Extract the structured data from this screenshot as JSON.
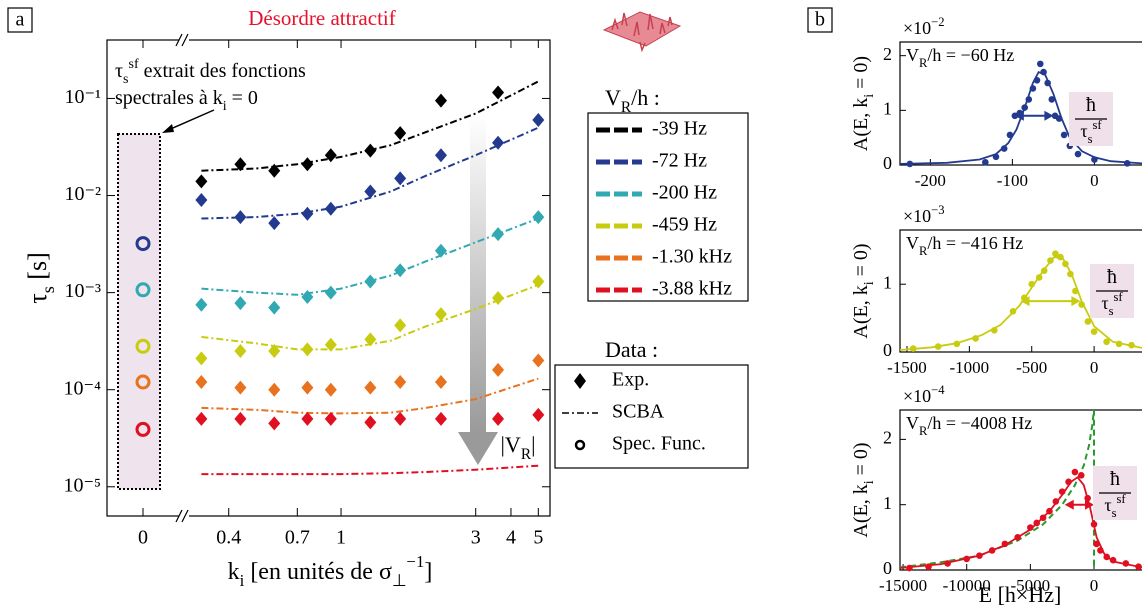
{
  "chart_data": [
    {
      "type": "scatter",
      "panel": "a",
      "title": "Désordre attractif",
      "xlog": true,
      "ylog": true,
      "xlim": [
        0.28,
        5.5
      ],
      "ylim": [
        5e-06,
        0.4
      ],
      "xticks": [
        0.4,
        0.7,
        1,
        3,
        4,
        5
      ],
      "break_xticks": [
        0
      ],
      "yticks": [
        {
          "value": 1e-05,
          "label": "10⁻⁵"
        },
        {
          "value": 0.0001,
          "label": "10⁻⁴"
        },
        {
          "value": 0.001,
          "label": "10⁻³"
        },
        {
          "value": 0.01,
          "label": "10⁻²"
        },
        {
          "value": 0.1,
          "label": "10⁻¹"
        }
      ],
      "xlabel": [
        {
          "t": "k"
        },
        {
          "t": "i",
          "pos": "sub"
        },
        {
          "t": " [en unités de σ"
        },
        {
          "t": "⊥",
          "pos": "sub"
        },
        {
          "t": "−1",
          "pos": "sup"
        },
        {
          "t": "]"
        }
      ],
      "ylabel": [
        {
          "t": "τ"
        },
        {
          "t": "s",
          "pos": "sub"
        },
        {
          "t": " [s]"
        }
      ],
      "annotation": [
        [
          {
            "t": "τ"
          },
          {
            "t": "s",
            "pos": "sub"
          },
          {
            "t": "sf",
            "pos": "sup"
          },
          {
            "t": " extrait des fonctions"
          }
        ],
        [
          {
            "t": "spectrales à k"
          },
          {
            "t": "i",
            "pos": "sub"
          },
          {
            "t": " = 0"
          }
        ]
      ],
      "legend_title": [
        {
          "t": "V"
        },
        {
          "t": "R",
          "pos": "sub"
        },
        {
          "t": "/h :"
        }
      ],
      "arrow_label": [
        {
          "t": "|V"
        },
        {
          "t": "R",
          "pos": "sub"
        },
        {
          "t": "|"
        }
      ],
      "data_legend": {
        "title": "Data :",
        "entries": [
          "Exp.",
          "SCBA",
          "Spec. Func."
        ]
      },
      "series": [
        {
          "name": "-39 Hz",
          "color": "#000000",
          "x": [
            0.32,
            0.44,
            0.58,
            0.76,
            0.92,
            1.27,
            1.62,
            2.26,
            3.6
          ],
          "values": [
            0.014,
            0.021,
            0.018,
            0.021,
            0.026,
            0.029,
            0.044,
            0.095,
            0.115
          ],
          "fit_x": [
            0.32,
            0.5,
            0.7,
            1,
            1.5,
            2,
            3,
            5
          ],
          "fit": [
            0.018,
            0.019,
            0.021,
            0.025,
            0.033,
            0.045,
            0.07,
            0.15
          ]
        },
        {
          "name": "-72 Hz",
          "color": "#233a8e",
          "x": [
            0.32,
            0.44,
            0.58,
            0.76,
            0.92,
            1.27,
            1.62,
            2.26,
            3.6,
            5.0
          ],
          "values": [
            0.009,
            0.006,
            0.0052,
            0.0065,
            0.0073,
            0.011,
            0.015,
            0.026,
            0.035,
            0.06
          ],
          "fit_x": [
            0.32,
            0.5,
            0.7,
            1,
            1.5,
            2,
            3,
            5
          ],
          "fit": [
            0.0058,
            0.006,
            0.0065,
            0.0077,
            0.011,
            0.016,
            0.026,
            0.05
          ],
          "spec": 0.0032
        },
        {
          "name": "-200 Hz",
          "color": "#31a9b3",
          "x": [
            0.32,
            0.44,
            0.58,
            0.76,
            0.92,
            1.27,
            1.62,
            2.26,
            3.6,
            5.0
          ],
          "values": [
            0.00075,
            0.00078,
            0.0007,
            0.0009,
            0.001,
            0.0013,
            0.0017,
            0.0027,
            0.004,
            0.006
          ],
          "fit_x": [
            0.32,
            0.5,
            0.7,
            1,
            1.5,
            2,
            3,
            5
          ],
          "fit": [
            0.0011,
            0.001,
            0.00095,
            0.0011,
            0.0015,
            0.0021,
            0.0033,
            0.0058
          ],
          "spec": 0.00107
        },
        {
          "name": "-459 Hz",
          "color": "#c8cc10",
          "x": [
            0.32,
            0.44,
            0.58,
            0.76,
            0.92,
            1.27,
            1.62,
            2.26,
            3.6,
            5.0
          ],
          "values": [
            0.00021,
            0.00025,
            0.00025,
            0.00026,
            0.00029,
            0.00033,
            0.00046,
            0.0006,
            0.00088,
            0.0013
          ],
          "fit_x": [
            0.32,
            0.5,
            0.7,
            1,
            1.5,
            2,
            3,
            5
          ],
          "fit": [
            0.00035,
            0.0003,
            0.00026,
            0.00026,
            0.00032,
            0.00045,
            0.00068,
            0.0012
          ],
          "spec": 0.00028
        },
        {
          "name": "-1.30 kHz",
          "color": "#e8721e",
          "x": [
            0.32,
            0.44,
            0.58,
            0.76,
            0.92,
            1.27,
            1.62,
            2.26,
            3.6,
            5.0
          ],
          "values": [
            0.00012,
            0.000105,
            0.0001,
            0.000105,
            0.0001,
            0.000105,
            0.00012,
            0.00012,
            0.00016,
            0.0002
          ],
          "fit_x": [
            0.32,
            0.5,
            0.7,
            1,
            1.5,
            2,
            3,
            5
          ],
          "fit": [
            6.5e-05,
            6.2e-05,
            5.8e-05,
            5.7e-05,
            5.8e-05,
            6.5e-05,
            8e-05,
            0.00013
          ],
          "spec": 0.00012
        },
        {
          "name": "-3.88 kHz",
          "color": "#e01020",
          "x": [
            0.32,
            0.44,
            0.58,
            0.76,
            0.92,
            1.27,
            1.62,
            2.26,
            3.6,
            5.0
          ],
          "values": [
            5e-05,
            5e-05,
            4.5e-05,
            5e-05,
            5e-05,
            4.6e-05,
            5e-05,
            5e-05,
            5e-05,
            5.5e-05
          ],
          "fit_x": [
            0.32,
            0.5,
            0.7,
            1,
            1.5,
            2,
            3,
            5
          ],
          "fit": [
            1.35e-05,
            1.35e-05,
            1.35e-05,
            1.35e-05,
            1.38e-05,
            1.42e-05,
            1.5e-05,
            1.65e-05
          ],
          "spec": 3.9e-05
        }
      ]
    },
    {
      "type": "line",
      "panel": "b",
      "color": "#233a8e",
      "xlim": [
        -237,
        58
      ],
      "ylim": [
        0,
        2.25
      ],
      "xticks": [
        -200,
        -100,
        0
      ],
      "yticks": [
        0,
        1,
        2
      ],
      "multiplier": [
        {
          "t": "×10"
        },
        {
          "t": "−2",
          "pos": "sup"
        }
      ],
      "ylabel": [
        {
          "t": "A(E, k"
        },
        {
          "t": "i",
          "pos": "sub"
        },
        {
          "t": " = 0)"
        }
      ],
      "annotation": [
        {
          "t": "V"
        },
        {
          "t": "R",
          "pos": "sub"
        },
        {
          "t": "/h = −60 Hz"
        }
      ],
      "width_label": {
        "top": [
          {
            "t": "ħ"
          }
        ],
        "bottom": [
          {
            "t": "τ"
          },
          {
            "t": "s",
            "pos": "sub"
          },
          {
            "t": "sf",
            "pos": "sup"
          }
        ]
      },
      "x": [
        -225,
        -133,
        -120,
        -110,
        -103,
        -97,
        -91,
        -85,
        -80,
        -75,
        -70,
        -66,
        -62,
        -57,
        -52,
        -48,
        -43,
        -37,
        -30,
        -20,
        0,
        40
      ],
      "values": [
        0.02,
        0.05,
        0.15,
        0.3,
        0.55,
        0.9,
        0.95,
        1.05,
        1.2,
        1.4,
        1.55,
        1.85,
        1.7,
        1.5,
        1.2,
        0.9,
        0.85,
        0.55,
        0.35,
        0.2,
        0.1,
        0.03
      ],
      "fit_x": [
        -237,
        -180,
        -140,
        -120,
        -105,
        -95,
        -85,
        -75,
        -68,
        -60,
        -50,
        -40,
        -30,
        -15,
        0,
        20,
        58
      ],
      "fit": [
        0.02,
        0.04,
        0.1,
        0.2,
        0.4,
        0.65,
        1.05,
        1.5,
        1.7,
        1.65,
        1.3,
        0.85,
        0.5,
        0.25,
        0.14,
        0.07,
        0.03
      ],
      "fwhm": {
        "x": [
          -97,
          -50
        ],
        "y": 0.9
      }
    },
    {
      "type": "line",
      "color": "#c8cc10",
      "xlim": [
        -1556,
        384
      ],
      "ylim": [
        0,
        1.8
      ],
      "xticks": [
        -1500,
        -1000,
        -500,
        0
      ],
      "yticks": [
        0,
        1
      ],
      "multiplier": [
        {
          "t": "×10"
        },
        {
          "t": "−3",
          "pos": "sup"
        }
      ],
      "ylabel": [
        {
          "t": "A(E, k"
        },
        {
          "t": "i",
          "pos": "sub"
        },
        {
          "t": " = 0)"
        }
      ],
      "annotation": [
        {
          "t": "V"
        },
        {
          "t": "R",
          "pos": "sub"
        },
        {
          "t": "/h = −416 Hz"
        }
      ],
      "width_label": {
        "top": [
          {
            "t": "ħ"
          }
        ],
        "bottom": [
          {
            "t": "τ"
          },
          {
            "t": "s",
            "pos": "sub"
          },
          {
            "t": "sf",
            "pos": "sup"
          }
        ]
      },
      "x": [
        -1450,
        -1250,
        -1100,
        -950,
        -800,
        -650,
        -560,
        -500,
        -440,
        -400,
        -350,
        -310,
        -270,
        -230,
        -190,
        -150,
        -100,
        -50,
        0,
        100,
        200,
        300
      ],
      "values": [
        0.05,
        0.08,
        0.12,
        0.2,
        0.32,
        0.6,
        0.8,
        1.0,
        1.1,
        1.2,
        1.35,
        1.45,
        1.4,
        1.3,
        1.15,
        0.9,
        0.7,
        0.45,
        0.3,
        0.15,
        0.12,
        0.1
      ],
      "fit_x": [
        -1556,
        -1300,
        -1100,
        -900,
        -750,
        -600,
        -500,
        -400,
        -320,
        -250,
        -180,
        -100,
        0,
        150,
        384
      ],
      "fit": [
        0.03,
        0.07,
        0.13,
        0.25,
        0.4,
        0.68,
        0.95,
        1.22,
        1.4,
        1.38,
        1.15,
        0.75,
        0.38,
        0.15,
        0.06
      ],
      "fwhm": {
        "x": [
          -590,
          -110
        ],
        "y": 0.75
      }
    },
    {
      "type": "line",
      "color": "#e01020",
      "xlim": [
        -15240,
        3770
      ],
      "ylim": [
        0,
        2.45
      ],
      "xticks": [
        -15000,
        -10000,
        -5000,
        0
      ],
      "yticks": [
        0,
        1,
        2
      ],
      "multiplier": [
        {
          "t": "×10"
        },
        {
          "t": "−4",
          "pos": "sup"
        }
      ],
      "ylabel": [
        {
          "t": "A(E, k"
        },
        {
          "t": "i",
          "pos": "sub"
        },
        {
          "t": " = 0)"
        }
      ],
      "xlabel": "E [h×Hz]",
      "annotation": [
        {
          "t": "V"
        },
        {
          "t": "R",
          "pos": "sub"
        },
        {
          "t": "/h = −4008 Hz"
        }
      ],
      "width_label": {
        "top": [
          {
            "t": "ħ"
          }
        ],
        "bottom": [
          {
            "t": "τ"
          },
          {
            "t": "s",
            "pos": "sub"
          },
          {
            "t": "sf",
            "pos": "sup"
          }
        ]
      },
      "x": [
        -14500,
        -13000,
        -11500,
        -10000,
        -9000,
        -8000,
        -7000,
        -6000,
        -5000,
        -4500,
        -4000,
        -3500,
        -3000,
        -2500,
        -2000,
        -1500,
        -1000,
        -500,
        0,
        200,
        500,
        1000,
        1500,
        2500,
        3500
      ],
      "values": [
        0.03,
        0.05,
        0.1,
        0.17,
        0.22,
        0.3,
        0.4,
        0.5,
        0.65,
        0.72,
        0.8,
        0.9,
        1.05,
        1.2,
        1.35,
        1.5,
        1.45,
        1.1,
        0.7,
        0.4,
        0.3,
        0.2,
        0.15,
        0.1,
        0.05
      ],
      "fit_x": [
        -15240,
        -12000,
        -9000,
        -7000,
        -5000,
        -3500,
        -2500,
        -1800,
        -1300,
        -800,
        -300,
        200,
        800,
        1500,
        3770
      ],
      "fit": [
        0.03,
        0.09,
        0.22,
        0.38,
        0.62,
        0.9,
        1.15,
        1.35,
        1.42,
        1.3,
        0.95,
        0.5,
        0.25,
        0.13,
        0.04
      ],
      "guide_color": "#2a9a2a",
      "guide_x": [
        -15240,
        -12000,
        -9000,
        -6000,
        -4000,
        -2500,
        -1500,
        -800,
        -400,
        -150,
        0,
        0
      ],
      "guide": [
        0.04,
        0.12,
        0.22,
        0.45,
        0.7,
        1.0,
        1.3,
        1.6,
        1.9,
        2.2,
        2.45,
        0
      ],
      "fwhm": {
        "x": [
          -2300,
          0
        ],
        "y": 1.0
      }
    }
  ]
}
